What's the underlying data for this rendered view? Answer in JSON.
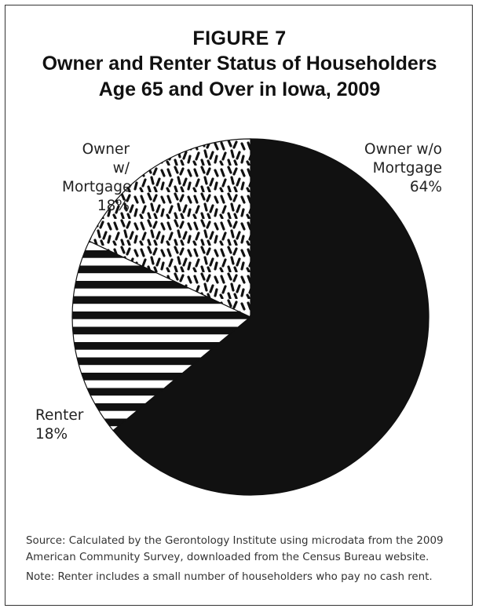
{
  "figure_label": "FIGURE 7",
  "title_lines": [
    "Owner and Renter Status of Householders",
    "Age 65 and Over in Iowa, 2009"
  ],
  "chart_data": {
    "type": "pie",
    "title": "Owner and Renter Status of Householders Age 65 and Over in Iowa, 2009",
    "slices": [
      {
        "name": "Owner w/o Mortgage",
        "label_lines": [
          "Owner w/o",
          "Mortgage"
        ],
        "value": 64,
        "value_label": "64%",
        "fill": "solid",
        "color": "#111111"
      },
      {
        "name": "Renter",
        "label_lines": [
          "Renter"
        ],
        "value": 18,
        "value_label": "18%",
        "fill": "horizontal-stripes",
        "color": "#111111"
      },
      {
        "name": "Owner w/ Mortgage",
        "label_lines": [
          "Owner w/",
          "Mortgage"
        ],
        "value": 18,
        "value_label": "18%",
        "fill": "speckle",
        "color": "#111111"
      }
    ],
    "start": "top, clockwise"
  },
  "source_lines": [
    "Source: Calculated by the Gerontology Institute using microdata from the 2009",
    "American Community Survey, downloaded from the Census Bureau website."
  ],
  "note": "Note: Renter includes a small number of householders who pay no cash rent."
}
